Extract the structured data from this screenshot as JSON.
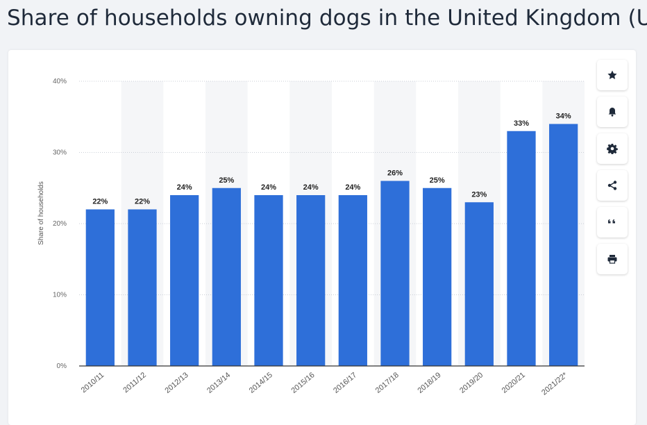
{
  "page": {
    "title": "Share of households owning dogs in the United Kingdom (UK)"
  },
  "toolbar": {
    "icons": [
      "star-icon",
      "bell-icon",
      "gear-icon",
      "share-icon",
      "quote-icon",
      "print-icon"
    ]
  },
  "colors": {
    "bar": "#2e6fd9",
    "band": "#f5f6f8",
    "grid": "#c9ced6",
    "axis": "#333333"
  },
  "chart_data": {
    "type": "bar",
    "title": "",
    "xlabel": "",
    "ylabel": "Share of households",
    "ylim": [
      0,
      40
    ],
    "yticks": [
      "0%",
      "10%",
      "20%",
      "30%",
      "40%"
    ],
    "ytick_values": [
      0,
      10,
      20,
      30,
      40
    ],
    "categories": [
      "2010/11",
      "2011/12",
      "2012/13",
      "2013/14",
      "2014/15",
      "2015/16",
      "2016/17",
      "2017/18",
      "2018/19",
      "2019/20",
      "2020/21",
      "2021/22*"
    ],
    "values": [
      22,
      22,
      24,
      25,
      24,
      24,
      24,
      26,
      25,
      23,
      33,
      34
    ],
    "data_labels": [
      "22%",
      "22%",
      "24%",
      "25%",
      "24%",
      "24%",
      "24%",
      "26%",
      "25%",
      "23%",
      "33%",
      "34%"
    ],
    "grid": true,
    "legend": "none"
  }
}
